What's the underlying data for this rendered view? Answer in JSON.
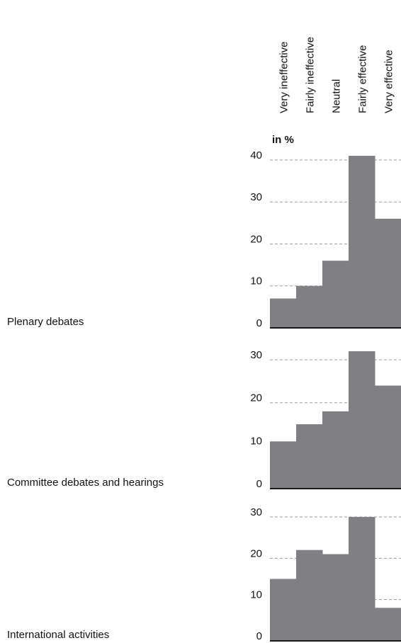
{
  "chart_data": {
    "type": "bar",
    "y_label": "in %",
    "categories": [
      "Very ineffective",
      "Fairly ineffective",
      "Neutral",
      "Fairly effective",
      "Very effective"
    ],
    "color": "#808084",
    "grid": true,
    "series": [
      {
        "name": "Plenary debates",
        "values": [
          7,
          10,
          16,
          41,
          26
        ],
        "ylim": [
          0,
          41
        ],
        "yticks": [
          0,
          10,
          20,
          30,
          40
        ]
      },
      {
        "name": "Committee debates and hearings",
        "values": [
          11,
          15,
          18,
          32,
          24
        ],
        "ylim": [
          0,
          32
        ],
        "yticks": [
          0,
          10,
          20,
          30
        ]
      },
      {
        "name": "International activities",
        "values": [
          15,
          22,
          21,
          30,
          8
        ],
        "ylim": [
          0,
          30
        ],
        "yticks": [
          0,
          10,
          20,
          30
        ]
      }
    ]
  }
}
